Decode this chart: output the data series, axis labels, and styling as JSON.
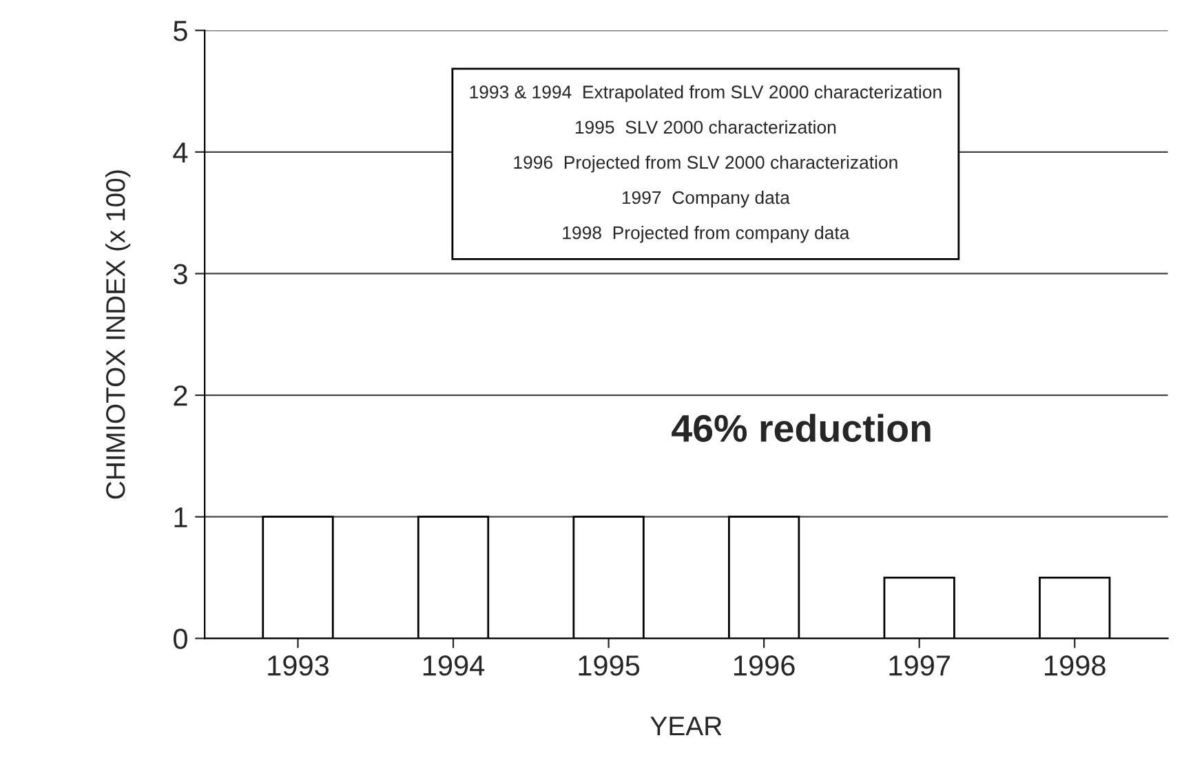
{
  "chart_data": {
    "type": "bar",
    "xlabel": "YEAR",
    "ylabel": "CHIMIOTOX INDEX (x 100)",
    "categories": [
      "1993",
      "1994",
      "1995",
      "1996",
      "1997",
      "1998"
    ],
    "values": [
      1,
      1,
      1,
      1,
      0.5,
      0.5
    ],
    "color": "#ffffff",
    "ylim": [
      0,
      5
    ],
    "yticks": [
      0,
      1,
      2,
      3,
      4,
      5
    ],
    "grid": "y",
    "annotations": [
      "1993 & 1994  Extrapolated from SLV 2000 characterization",
      "1995  SLV 2000 characterization",
      "1996  Projected from SLV 2000 characterization",
      "1997  Company data",
      "1998  Projected from company data",
      "46% reduction"
    ]
  }
}
